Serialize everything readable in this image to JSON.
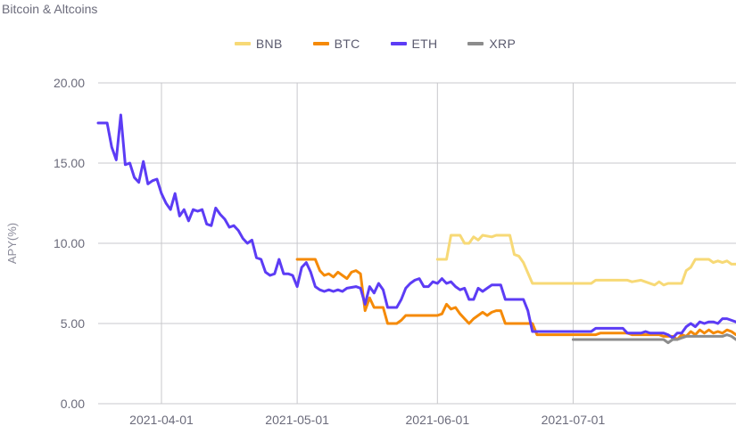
{
  "page": {
    "title": "Bitcoin & Altcoins"
  },
  "colors": {
    "BNB": "#f7d976",
    "BTC": "#f58a07",
    "ETH": "#5c3cf5",
    "XRP": "#8c8c8c",
    "grid": "#c8c8cc"
  },
  "chart_data": {
    "type": "line",
    "ylabel": "APY(%)",
    "xlabel": "",
    "x_range": [
      "2021-03-18",
      "2021-08-06"
    ],
    "ylim": [
      0,
      20
    ],
    "y_ticks": [
      "0.00",
      "5.00",
      "10.00",
      "15.00",
      "20.00"
    ],
    "x_ticks": [
      "2021-04-01",
      "2021-05-01",
      "2021-06-01",
      "2021-07-01"
    ],
    "grid": true,
    "legend": "top-center",
    "series": [
      {
        "name": "BNB",
        "points": [
          [
            "2021-06-01",
            9.0
          ],
          [
            "2021-06-03",
            9.0
          ],
          [
            "2021-06-04",
            10.5
          ],
          [
            "2021-06-06",
            10.5
          ],
          [
            "2021-06-07",
            10.0
          ],
          [
            "2021-06-08",
            10.0
          ],
          [
            "2021-06-09",
            10.4
          ],
          [
            "2021-06-10",
            10.2
          ],
          [
            "2021-06-11",
            10.5
          ],
          [
            "2021-06-13",
            10.4
          ],
          [
            "2021-06-14",
            10.5
          ],
          [
            "2021-06-17",
            10.5
          ],
          [
            "2021-06-18",
            9.3
          ],
          [
            "2021-06-19",
            9.2
          ],
          [
            "2021-06-20",
            8.8
          ],
          [
            "2021-06-22",
            7.5
          ],
          [
            "2021-07-05",
            7.5
          ],
          [
            "2021-07-06",
            7.7
          ],
          [
            "2021-07-13",
            7.7
          ],
          [
            "2021-07-14",
            7.6
          ],
          [
            "2021-07-16",
            7.7
          ],
          [
            "2021-07-19",
            7.4
          ],
          [
            "2021-07-20",
            7.6
          ],
          [
            "2021-07-21",
            7.4
          ],
          [
            "2021-07-22",
            7.5
          ],
          [
            "2021-07-25",
            7.5
          ],
          [
            "2021-07-26",
            8.3
          ],
          [
            "2021-07-27",
            8.5
          ],
          [
            "2021-07-28",
            9.0
          ],
          [
            "2021-07-31",
            9.0
          ],
          [
            "2021-08-01",
            8.8
          ],
          [
            "2021-08-02",
            8.9
          ],
          [
            "2021-08-03",
            8.8
          ],
          [
            "2021-08-04",
            8.9
          ],
          [
            "2021-08-05",
            8.7
          ],
          [
            "2021-08-06",
            8.7
          ]
        ]
      },
      {
        "name": "BTC",
        "points": [
          [
            "2021-05-01",
            9.0
          ],
          [
            "2021-05-05",
            9.0
          ],
          [
            "2021-05-06",
            8.3
          ],
          [
            "2021-05-07",
            8.0
          ],
          [
            "2021-05-08",
            8.1
          ],
          [
            "2021-05-09",
            7.9
          ],
          [
            "2021-05-10",
            8.2
          ],
          [
            "2021-05-11",
            8.0
          ],
          [
            "2021-05-12",
            7.8
          ],
          [
            "2021-05-13",
            8.2
          ],
          [
            "2021-05-14",
            8.3
          ],
          [
            "2021-05-15",
            8.1
          ],
          [
            "2021-05-16",
            5.8
          ],
          [
            "2021-05-17",
            6.6
          ],
          [
            "2021-05-18",
            6.0
          ],
          [
            "2021-05-20",
            6.0
          ],
          [
            "2021-05-21",
            5.0
          ],
          [
            "2021-05-23",
            5.0
          ],
          [
            "2021-05-24",
            5.2
          ],
          [
            "2021-05-25",
            5.5
          ],
          [
            "2021-05-31",
            5.5
          ],
          [
            "2021-06-01",
            5.5
          ],
          [
            "2021-06-02",
            5.6
          ],
          [
            "2021-06-03",
            6.2
          ],
          [
            "2021-06-04",
            5.9
          ],
          [
            "2021-06-05",
            6.0
          ],
          [
            "2021-06-06",
            5.6
          ],
          [
            "2021-06-07",
            5.3
          ],
          [
            "2021-06-08",
            5.0
          ],
          [
            "2021-06-09",
            5.3
          ],
          [
            "2021-06-11",
            5.7
          ],
          [
            "2021-06-12",
            5.5
          ],
          [
            "2021-06-13",
            5.7
          ],
          [
            "2021-06-14",
            5.8
          ],
          [
            "2021-06-15",
            5.8
          ],
          [
            "2021-06-16",
            5.0
          ],
          [
            "2021-06-22",
            5.0
          ],
          [
            "2021-06-23",
            4.3
          ],
          [
            "2021-07-06",
            4.3
          ],
          [
            "2021-07-07",
            4.4
          ],
          [
            "2021-07-13",
            4.4
          ],
          [
            "2021-07-14",
            4.3
          ],
          [
            "2021-07-20",
            4.3
          ],
          [
            "2021-07-21",
            4.2
          ],
          [
            "2021-07-23",
            4.2
          ],
          [
            "2021-07-24",
            4.0
          ],
          [
            "2021-07-25",
            4.3
          ],
          [
            "2021-07-26",
            4.2
          ],
          [
            "2021-07-27",
            4.5
          ],
          [
            "2021-07-28",
            4.3
          ],
          [
            "2021-07-29",
            4.6
          ],
          [
            "2021-07-30",
            4.4
          ],
          [
            "2021-07-31",
            4.6
          ],
          [
            "2021-08-01",
            4.4
          ],
          [
            "2021-08-02",
            4.5
          ],
          [
            "2021-08-03",
            4.4
          ],
          [
            "2021-08-04",
            4.6
          ],
          [
            "2021-08-05",
            4.5
          ],
          [
            "2021-08-06",
            4.3
          ]
        ]
      },
      {
        "name": "ETH",
        "points": [
          [
            "2021-03-18",
            17.5
          ],
          [
            "2021-03-20",
            17.5
          ],
          [
            "2021-03-21",
            16.0
          ],
          [
            "2021-03-22",
            15.2
          ],
          [
            "2021-03-23",
            18.0
          ],
          [
            "2021-03-24",
            14.9
          ],
          [
            "2021-03-25",
            15.0
          ],
          [
            "2021-03-26",
            14.1
          ],
          [
            "2021-03-27",
            13.8
          ],
          [
            "2021-03-28",
            15.1
          ],
          [
            "2021-03-29",
            13.7
          ],
          [
            "2021-03-30",
            13.9
          ],
          [
            "2021-03-31",
            14.0
          ],
          [
            "2021-04-01",
            13.1
          ],
          [
            "2021-04-02",
            12.5
          ],
          [
            "2021-04-03",
            12.1
          ],
          [
            "2021-04-04",
            13.1
          ],
          [
            "2021-04-05",
            11.7
          ],
          [
            "2021-04-06",
            12.1
          ],
          [
            "2021-04-07",
            11.4
          ],
          [
            "2021-04-08",
            12.1
          ],
          [
            "2021-04-09",
            12.0
          ],
          [
            "2021-04-10",
            12.1
          ],
          [
            "2021-04-11",
            11.2
          ],
          [
            "2021-04-12",
            11.1
          ],
          [
            "2021-04-13",
            12.2
          ],
          [
            "2021-04-14",
            11.8
          ],
          [
            "2021-04-15",
            11.5
          ],
          [
            "2021-04-16",
            11.0
          ],
          [
            "2021-04-17",
            11.1
          ],
          [
            "2021-04-18",
            10.8
          ],
          [
            "2021-04-19",
            10.3
          ],
          [
            "2021-04-20",
            10.0
          ],
          [
            "2021-04-21",
            10.2
          ],
          [
            "2021-04-22",
            9.1
          ],
          [
            "2021-04-23",
            9.0
          ],
          [
            "2021-04-24",
            8.2
          ],
          [
            "2021-04-25",
            8.0
          ],
          [
            "2021-04-26",
            8.1
          ],
          [
            "2021-04-27",
            9.0
          ],
          [
            "2021-04-28",
            8.1
          ],
          [
            "2021-04-29",
            8.1
          ],
          [
            "2021-04-30",
            8.0
          ],
          [
            "2021-05-01",
            7.3
          ],
          [
            "2021-05-02",
            8.5
          ],
          [
            "2021-05-03",
            8.8
          ],
          [
            "2021-05-04",
            8.2
          ],
          [
            "2021-05-05",
            7.3
          ],
          [
            "2021-05-06",
            7.1
          ],
          [
            "2021-05-07",
            7.0
          ],
          [
            "2021-05-08",
            7.1
          ],
          [
            "2021-05-09",
            7.0
          ],
          [
            "2021-05-10",
            7.1
          ],
          [
            "2021-05-11",
            7.0
          ],
          [
            "2021-05-12",
            7.2
          ],
          [
            "2021-05-14",
            7.3
          ],
          [
            "2021-05-15",
            7.2
          ],
          [
            "2021-05-16",
            6.2
          ],
          [
            "2021-05-17",
            7.3
          ],
          [
            "2021-05-18",
            6.9
          ],
          [
            "2021-05-19",
            7.5
          ],
          [
            "2021-05-20",
            7.1
          ],
          [
            "2021-05-21",
            6.0
          ],
          [
            "2021-05-23",
            6.0
          ],
          [
            "2021-05-24",
            6.5
          ],
          [
            "2021-05-25",
            7.2
          ],
          [
            "2021-05-26",
            7.5
          ],
          [
            "2021-05-27",
            7.7
          ],
          [
            "2021-05-28",
            7.8
          ],
          [
            "2021-05-29",
            7.3
          ],
          [
            "2021-05-30",
            7.3
          ],
          [
            "2021-05-31",
            7.6
          ],
          [
            "2021-06-01",
            7.5
          ],
          [
            "2021-06-02",
            7.8
          ],
          [
            "2021-06-03",
            7.5
          ],
          [
            "2021-06-04",
            7.6
          ],
          [
            "2021-06-05",
            7.3
          ],
          [
            "2021-06-06",
            7.1
          ],
          [
            "2021-06-07",
            7.2
          ],
          [
            "2021-06-08",
            6.5
          ],
          [
            "2021-06-09",
            6.5
          ],
          [
            "2021-06-10",
            7.2
          ],
          [
            "2021-06-11",
            7.0
          ],
          [
            "2021-06-12",
            7.2
          ],
          [
            "2021-06-13",
            7.4
          ],
          [
            "2021-06-15",
            7.4
          ],
          [
            "2021-06-16",
            6.5
          ],
          [
            "2021-06-20",
            6.5
          ],
          [
            "2021-06-21",
            5.8
          ],
          [
            "2021-06-22",
            4.5
          ],
          [
            "2021-07-05",
            4.5
          ],
          [
            "2021-07-06",
            4.7
          ],
          [
            "2021-07-12",
            4.7
          ],
          [
            "2021-07-13",
            4.4
          ],
          [
            "2021-07-16",
            4.4
          ],
          [
            "2021-07-17",
            4.5
          ],
          [
            "2021-07-18",
            4.4
          ],
          [
            "2021-07-21",
            4.4
          ],
          [
            "2021-07-22",
            4.3
          ],
          [
            "2021-07-23",
            4.1
          ],
          [
            "2021-07-24",
            4.4
          ],
          [
            "2021-07-25",
            4.4
          ],
          [
            "2021-07-26",
            4.8
          ],
          [
            "2021-07-27",
            5.0
          ],
          [
            "2021-07-28",
            4.8
          ],
          [
            "2021-07-29",
            5.1
          ],
          [
            "2021-07-30",
            5.0
          ],
          [
            "2021-07-31",
            5.1
          ],
          [
            "2021-08-01",
            5.1
          ],
          [
            "2021-08-02",
            5.0
          ],
          [
            "2021-08-03",
            5.3
          ],
          [
            "2021-08-04",
            5.3
          ],
          [
            "2021-08-05",
            5.2
          ],
          [
            "2021-08-06",
            5.1
          ]
        ]
      },
      {
        "name": "XRP",
        "points": [
          [
            "2021-07-01",
            4.0
          ],
          [
            "2021-07-20",
            4.0
          ],
          [
            "2021-07-21",
            4.0
          ],
          [
            "2021-07-22",
            3.8
          ],
          [
            "2021-07-23",
            4.0
          ],
          [
            "2021-07-24",
            4.0
          ],
          [
            "2021-07-25",
            4.1
          ],
          [
            "2021-07-26",
            4.2
          ],
          [
            "2021-07-28",
            4.2
          ],
          [
            "2021-07-29",
            4.2
          ],
          [
            "2021-08-03",
            4.2
          ],
          [
            "2021-08-04",
            4.3
          ],
          [
            "2021-08-05",
            4.2
          ],
          [
            "2021-08-06",
            4.0
          ]
        ]
      }
    ]
  }
}
